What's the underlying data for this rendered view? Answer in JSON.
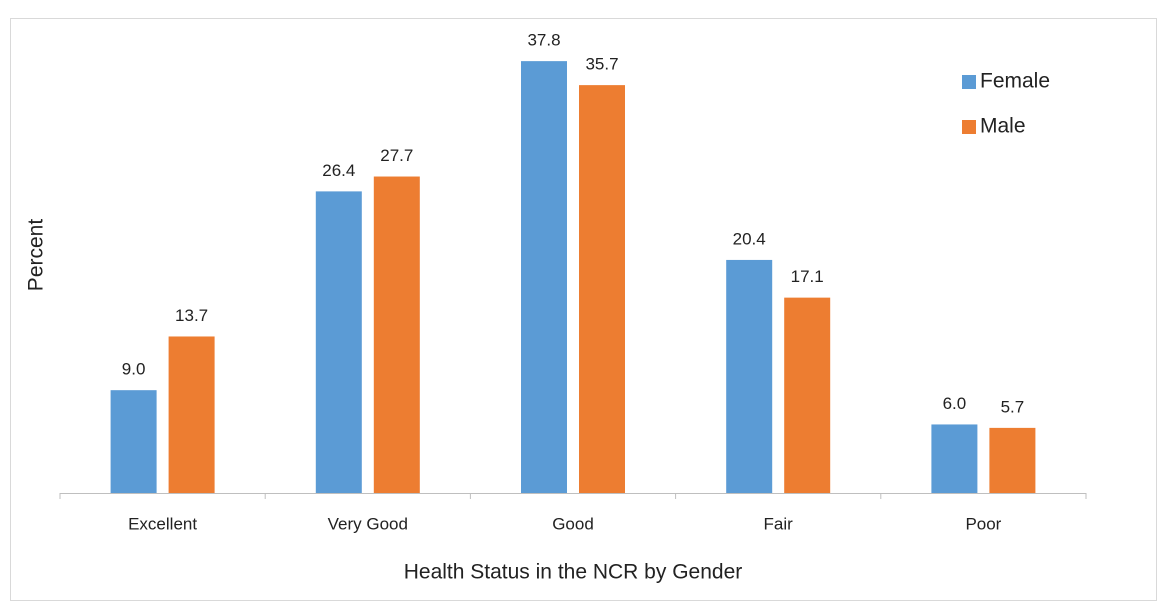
{
  "chart_data": {
    "type": "bar",
    "x_label": "Health Status in the NCR by Gender",
    "y_label": "Percent",
    "categories": [
      "Excellent",
      "Very Good",
      "Good",
      "Fair",
      "Poor"
    ],
    "series": [
      {
        "name": "Female",
        "color": "#5b9bd5",
        "values": [
          9.0,
          26.4,
          37.8,
          20.4,
          6.0
        ],
        "value_labels": [
          "9.0",
          "26.4",
          "37.8",
          "20.4",
          "6.0"
        ]
      },
      {
        "name": "Male",
        "color": "#ed7d31",
        "values": [
          13.7,
          27.7,
          35.7,
          17.1,
          5.7
        ],
        "value_labels": [
          "13.7",
          "27.7",
          "35.7",
          "17.1",
          "5.7"
        ]
      }
    ],
    "ylim": [
      0,
      40
    ],
    "legend": "top-right"
  }
}
